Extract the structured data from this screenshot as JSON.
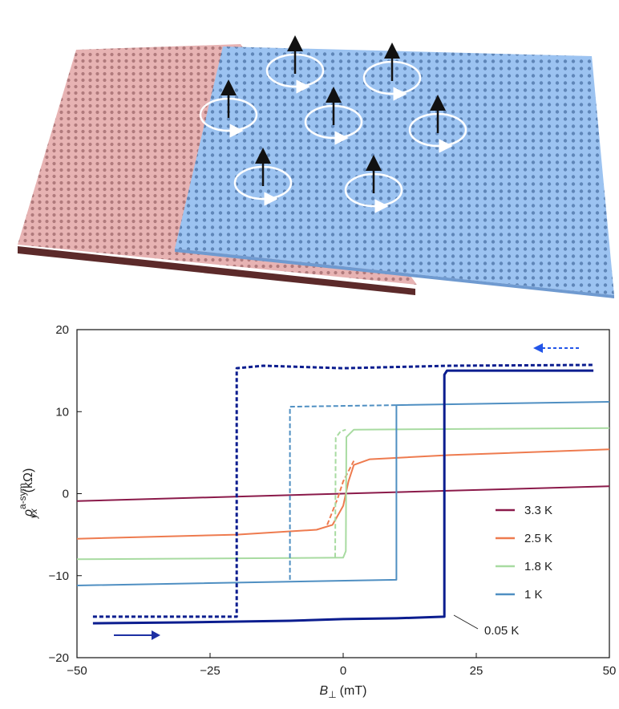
{
  "illustration": {
    "description_icons": "spin-vortex-icon",
    "bottom_layer_color": "#e3a9a9",
    "bottom_layer_edge_color": "#5c2a2a",
    "top_layer_color": "#8fbaee",
    "vortex_count": 7
  },
  "chart_data": {
    "type": "line",
    "title": "",
    "xlabel_main": "B",
    "xlabel_sub": "⊥",
    "xlabel_unit": "(mT)",
    "ylabel_main": "ρ",
    "ylabel_sub": "yx",
    "ylabel_sup": "a-sym",
    "ylabel_unit": "(kΩ)",
    "xlim": [
      -50,
      50
    ],
    "ylim": [
      -20,
      20
    ],
    "xticks": [
      -50,
      -25,
      0,
      25,
      50
    ],
    "xtick_labels": [
      "−50",
      "−25",
      "0",
      "25",
      "50"
    ],
    "yticks": [
      -20,
      -10,
      0,
      10,
      20
    ],
    "ytick_labels": [
      "−20",
      "−10",
      "0",
      "10",
      "20"
    ],
    "legend_position": "lower-right",
    "annotation": "0.05 K",
    "sweep_up_arrow_color": "#1d2fa3",
    "sweep_down_arrow_color": "#2255e8",
    "series": [
      {
        "name": "3.3 K",
        "color": "#8b1a4a",
        "segments": [
          {
            "style": "solid",
            "x": [
              -50,
              50
            ],
            "y": [
              -0.9,
              0.9
            ]
          }
        ]
      },
      {
        "name": "2.5 K",
        "color": "#ee7b4f",
        "segments": [
          {
            "style": "solid",
            "x": [
              -50,
              -20,
              -5,
              -2,
              0,
              1,
              2,
              5,
              20,
              50
            ],
            "y": [
              -5.5,
              -5.0,
              -4.4,
              -3.8,
              -1.5,
              1.5,
              3.5,
              4.2,
              4.7,
              5.4
            ]
          },
          {
            "style": "dashed",
            "x": [
              -3,
              -1,
              0,
              2
            ],
            "y": [
              -3.8,
              -0.5,
              1.5,
              4.0
            ]
          }
        ]
      },
      {
        "name": "1.8 K",
        "color": "#a8dba1",
        "segments": [
          {
            "style": "solid",
            "x": [
              -50,
              0,
              0.5,
              0.6,
              2,
              50
            ],
            "y": [
              -8.0,
              -7.8,
              -7.0,
              6.9,
              7.8,
              8.0
            ]
          },
          {
            "style": "dashed",
            "x": [
              -1.5,
              -1.4,
              -0.5,
              0.5
            ],
            "y": [
              -7.8,
              6.8,
              7.6,
              7.8
            ]
          }
        ]
      },
      {
        "name": "1 K",
        "color": "#4f8fc2",
        "segments": [
          {
            "style": "solid",
            "x": [
              -50,
              10,
              10,
              50
            ],
            "y": [
              -11.2,
              -10.5,
              10.8,
              11.2
            ]
          },
          {
            "style": "dashed",
            "x": [
              -10,
              -10,
              10
            ],
            "y": [
              -10.5,
              10.6,
              10.8
            ]
          }
        ]
      },
      {
        "name": "0.05 K",
        "color": "#0b1d8f",
        "segments": [
          {
            "style": "solid",
            "x": [
              -47,
              -30,
              -10,
              0,
              10,
              19,
              19,
              19.5,
              47
            ],
            "y": [
              -15.8,
              -15.7,
              -15.5,
              -15.3,
              -15.2,
              -15.0,
              14.5,
              15.0,
              15.0
            ]
          },
          {
            "style": "dashed",
            "x": [
              -47,
              -20,
              -20,
              -15,
              0,
              20,
              47
            ],
            "y": [
              -15.0,
              -15.0,
              15.3,
              15.6,
              15.3,
              15.6,
              15.7
            ]
          }
        ]
      }
    ]
  }
}
